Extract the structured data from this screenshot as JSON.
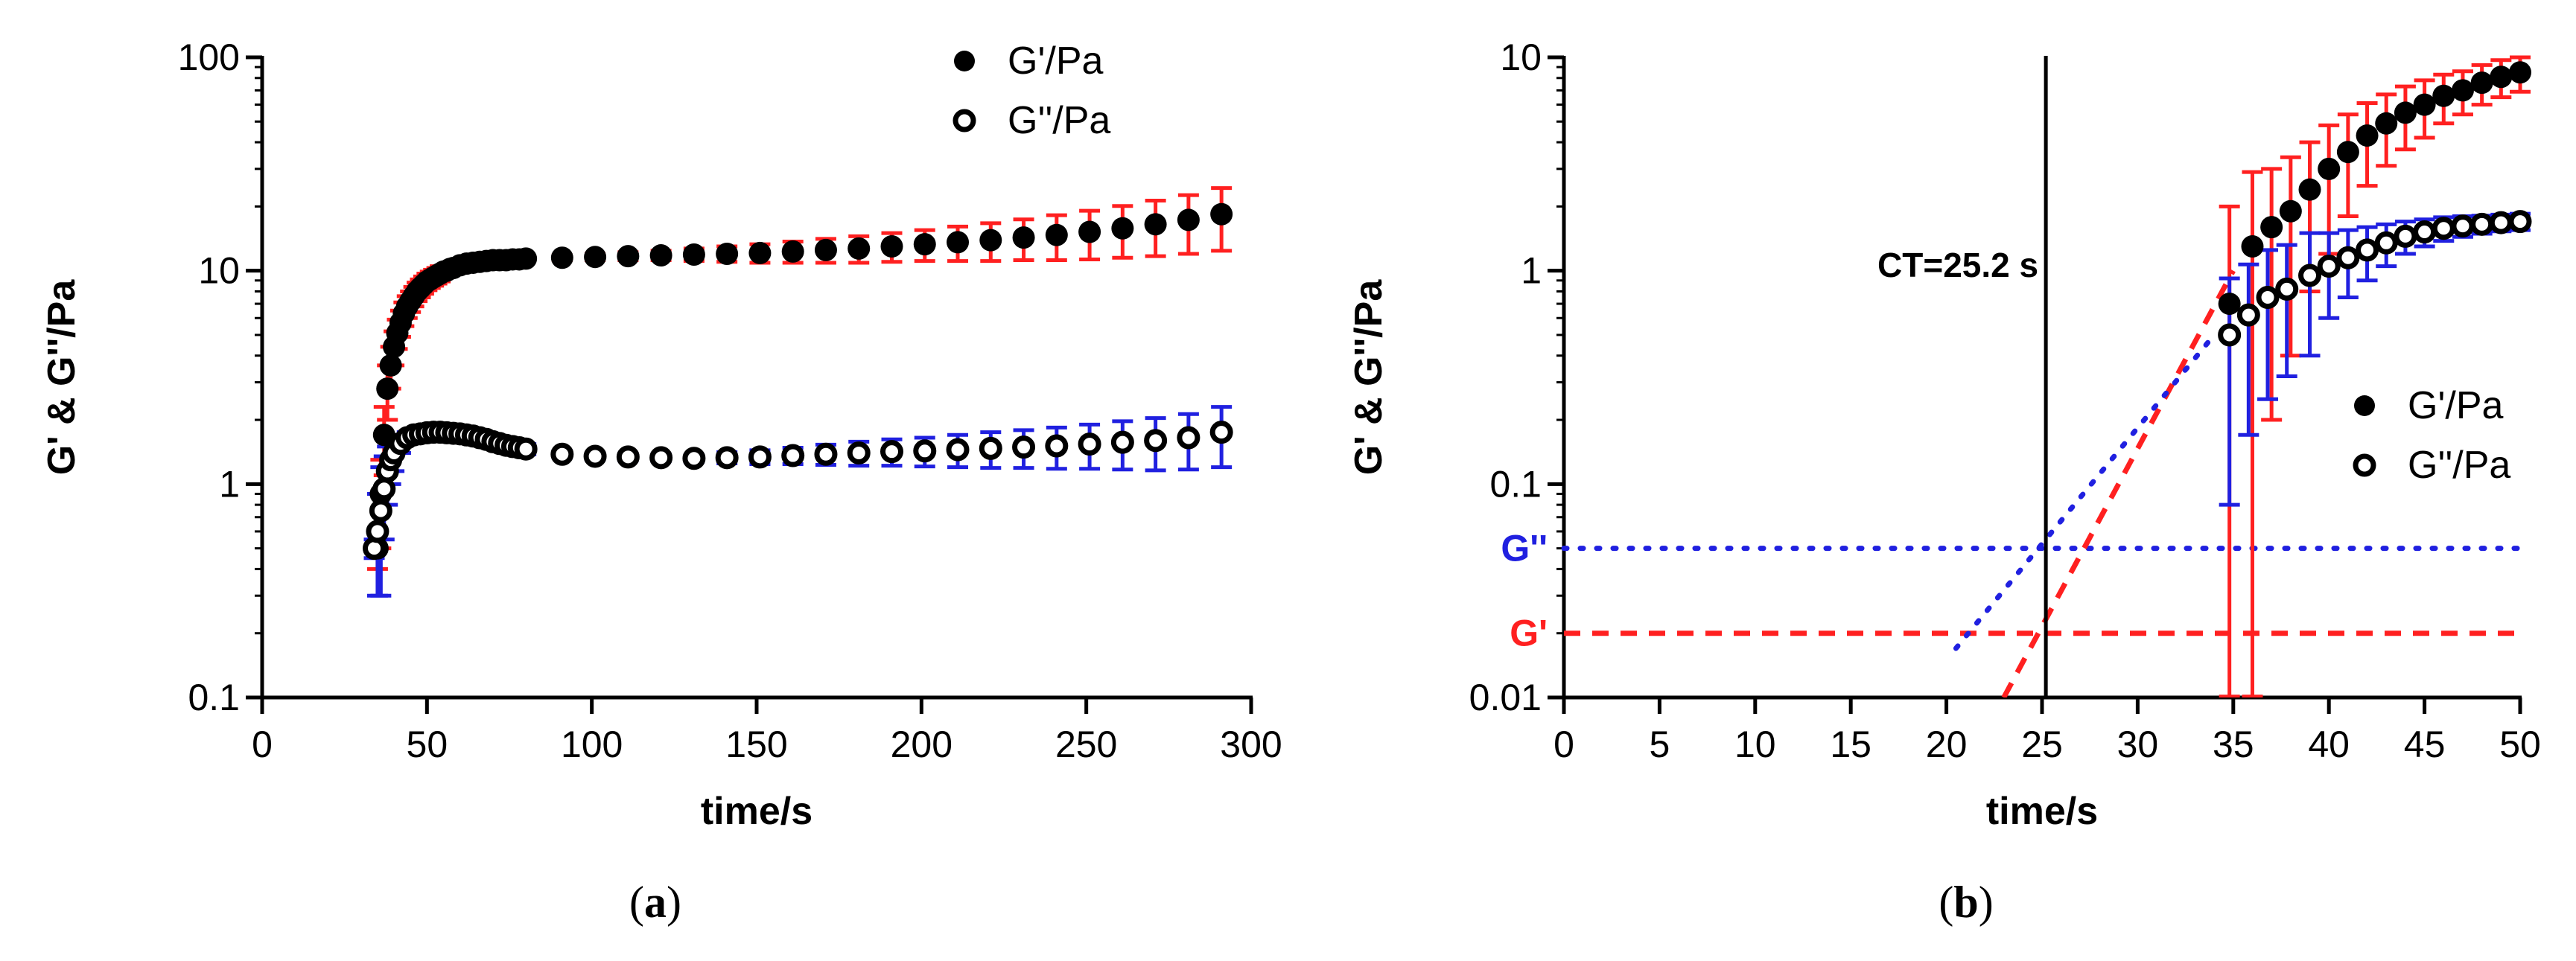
{
  "colors": {
    "g_prime": "#000000",
    "g_dprime": "#000000",
    "g_prime_err": "#ff2020",
    "g_dprime_err": "#2020e0",
    "g_prime_fit": "#ff2020",
    "g_dprime_fit": "#2020e0",
    "axis": "#000000"
  },
  "chart_data": [
    {
      "type": "scatter",
      "panel_label": "(a)",
      "caption_letter": "a",
      "title": "",
      "xlabel": "time/s",
      "ylabel": "G' & G''/Pa",
      "xscale": "linear",
      "yscale": "log",
      "xlim": [
        0,
        300
      ],
      "ylim": [
        0.1,
        100
      ],
      "xticks": [
        0,
        50,
        100,
        150,
        200,
        250,
        300
      ],
      "xtick_labels": [
        "0",
        "50",
        "100",
        "150",
        "200",
        "250",
        "300"
      ],
      "yticks": [
        0.1,
        1,
        10,
        100
      ],
      "ytick_labels": [
        "0.1",
        "1",
        "10",
        "100"
      ],
      "legend": {
        "position": "top-right",
        "entries": [
          "G'/Pa",
          "G''/Pa"
        ]
      },
      "series": [
        {
          "name": "G'/Pa",
          "marker": "filled-circle",
          "error_color": "g_prime_err",
          "x": [
            35,
            36,
            37,
            38,
            39,
            40,
            41,
            42,
            43,
            44,
            45,
            46,
            47,
            48,
            49,
            50,
            51,
            52,
            53,
            54,
            55,
            56,
            57,
            58,
            60,
            62,
            64,
            66,
            68,
            70,
            72,
            74,
            76,
            78,
            80,
            91,
            101,
            111,
            121,
            131,
            141,
            151,
            161,
            171,
            181,
            191,
            201,
            211,
            221,
            231,
            241,
            251,
            261,
            271,
            281,
            291
          ],
          "y": [
            0.5,
            0.9,
            1.7,
            2.8,
            3.6,
            4.4,
            5.1,
            5.7,
            6.3,
            6.8,
            7.2,
            7.6,
            8.0,
            8.3,
            8.6,
            8.9,
            9.1,
            9.3,
            9.5,
            9.7,
            9.9,
            10.0,
            10.2,
            10.3,
            10.6,
            10.8,
            10.9,
            11.0,
            11.1,
            11.2,
            11.2,
            11.2,
            11.3,
            11.3,
            11.4,
            11.5,
            11.6,
            11.7,
            11.8,
            11.9,
            12.0,
            12.1,
            12.3,
            12.5,
            12.7,
            13.0,
            13.3,
            13.6,
            13.9,
            14.3,
            14.7,
            15.2,
            15.8,
            16.5,
            17.3,
            18.4
          ],
          "err": [
            0.1,
            0.4,
            0.6,
            0.8,
            0.8,
            0.8,
            0.8,
            0.8,
            0.8,
            0.8,
            0.8,
            0.8,
            0.8,
            0.8,
            0.8,
            0.8,
            0.8,
            0.8,
            0.8,
            0.8,
            0.6,
            0.5,
            0.4,
            0.4,
            0.3,
            0.3,
            0.2,
            0.2,
            0.2,
            0.2,
            0.2,
            0.2,
            0.2,
            0.2,
            0.2,
            0.3,
            0.4,
            0.5,
            0.6,
            0.8,
            1.0,
            1.2,
            1.4,
            1.6,
            1.8,
            2.0,
            2.2,
            2.5,
            2.8,
            3.1,
            3.5,
            3.9,
            4.3,
            4.8,
            5.3,
            6.0
          ]
        },
        {
          "name": "G''/Pa",
          "marker": "open-circle",
          "error_color": "g_dprime_err",
          "x": [
            34,
            35,
            36,
            37,
            38,
            39,
            40,
            42,
            44,
            46,
            48,
            50,
            52,
            54,
            56,
            58,
            60,
            62,
            64,
            66,
            68,
            70,
            72,
            74,
            76,
            78,
            80,
            91,
            101,
            111,
            121,
            131,
            141,
            151,
            161,
            171,
            181,
            191,
            201,
            211,
            221,
            231,
            241,
            251,
            261,
            271,
            281,
            291
          ],
          "y": [
            0.5,
            0.6,
            0.75,
            0.95,
            1.15,
            1.3,
            1.4,
            1.55,
            1.65,
            1.7,
            1.72,
            1.74,
            1.75,
            1.75,
            1.74,
            1.73,
            1.72,
            1.7,
            1.68,
            1.65,
            1.62,
            1.58,
            1.55,
            1.52,
            1.5,
            1.48,
            1.46,
            1.38,
            1.35,
            1.34,
            1.33,
            1.32,
            1.33,
            1.34,
            1.36,
            1.38,
            1.4,
            1.42,
            1.43,
            1.45,
            1.47,
            1.49,
            1.51,
            1.54,
            1.57,
            1.6,
            1.65,
            1.75
          ],
          "err": [
            0.05,
            0.3,
            0.45,
            0.4,
            0.35,
            0.3,
            0.25,
            0.15,
            0.1,
            0.1,
            0.1,
            0.08,
            0.08,
            0.08,
            0.08,
            0.08,
            0.08,
            0.08,
            0.08,
            0.08,
            0.08,
            0.08,
            0.08,
            0.08,
            0.08,
            0.08,
            0.08,
            0.05,
            0.05,
            0.05,
            0.05,
            0.05,
            0.08,
            0.1,
            0.12,
            0.15,
            0.18,
            0.2,
            0.22,
            0.25,
            0.28,
            0.3,
            0.33,
            0.36,
            0.4,
            0.44,
            0.48,
            0.55
          ]
        }
      ]
    },
    {
      "type": "scatter",
      "panel_label": "(b)",
      "caption_letter": "b",
      "title": "",
      "xlabel": "time/s",
      "ylabel": "G' & G''/Pa",
      "xscale": "linear",
      "yscale": "log",
      "xlim": [
        0,
        50
      ],
      "ylim": [
        0.01,
        10
      ],
      "xticks": [
        0,
        5,
        10,
        15,
        20,
        25,
        30,
        35,
        40,
        45,
        50
      ],
      "xtick_labels": [
        "0",
        "5",
        "10",
        "15",
        "20",
        "25",
        "30",
        "35",
        "40",
        "45",
        "50"
      ],
      "yticks": [
        0.01,
        0.1,
        1,
        10
      ],
      "ytick_labels": [
        "0.01",
        "0.1",
        "1",
        "10"
      ],
      "legend": {
        "position": "right",
        "entries": [
          "G'/Pa",
          "G''/Pa"
        ]
      },
      "vline": {
        "x": 25.2,
        "label": "CT=25.2 s"
      },
      "hlines": [
        {
          "name": "G''",
          "label": "G''",
          "y": 0.05,
          "color": "g_dprime_fit",
          "style": "dotted"
        },
        {
          "name": "G'",
          "label": "G'",
          "y": 0.02,
          "color": "g_prime_fit",
          "style": "dashed"
        }
      ],
      "fit_lines": [
        {
          "name": "G' fit",
          "color": "g_prime_fit",
          "style": "dashed",
          "x": [
            23,
            35
          ],
          "y": [
            0.01,
            1
          ]
        },
        {
          "name": "G'' fit",
          "color": "g_dprime_fit",
          "style": "dotted",
          "x": [
            20.5,
            34
          ],
          "y": [
            0.017,
            0.5
          ]
        }
      ],
      "series": [
        {
          "name": "G'/Pa",
          "marker": "filled-circle",
          "error_color": "g_prime_err",
          "x": [
            34.8,
            36,
            37,
            38,
            39,
            40,
            41,
            42,
            43,
            44,
            45,
            46,
            47,
            48,
            49,
            50
          ],
          "y": [
            0.7,
            1.3,
            1.6,
            1.9,
            2.4,
            3.0,
            3.6,
            4.3,
            4.9,
            5.5,
            6.0,
            6.6,
            7.0,
            7.6,
            8.1,
            8.5
          ],
          "err": [
            1.3,
            1.6,
            1.4,
            1.5,
            1.6,
            1.8,
            1.8,
            1.8,
            1.8,
            1.8,
            1.8,
            1.7,
            1.6,
            1.6,
            1.6,
            1.6
          ]
        },
        {
          "name": "G''/Pa",
          "marker": "open-circle",
          "error_color": "g_dprime_err",
          "x": [
            34.8,
            35.8,
            36.8,
            37.8,
            39,
            40,
            41,
            42,
            43,
            44,
            45,
            46,
            47,
            48,
            49,
            50
          ],
          "y": [
            0.5,
            0.62,
            0.75,
            0.82,
            0.95,
            1.05,
            1.15,
            1.25,
            1.35,
            1.45,
            1.52,
            1.58,
            1.62,
            1.65,
            1.68,
            1.7
          ],
          "err": [
            0.42,
            0.45,
            0.5,
            0.5,
            0.55,
            0.45,
            0.4,
            0.35,
            0.3,
            0.25,
            0.22,
            0.2,
            0.18,
            0.16,
            0.15,
            0.15
          ]
        }
      ]
    }
  ]
}
